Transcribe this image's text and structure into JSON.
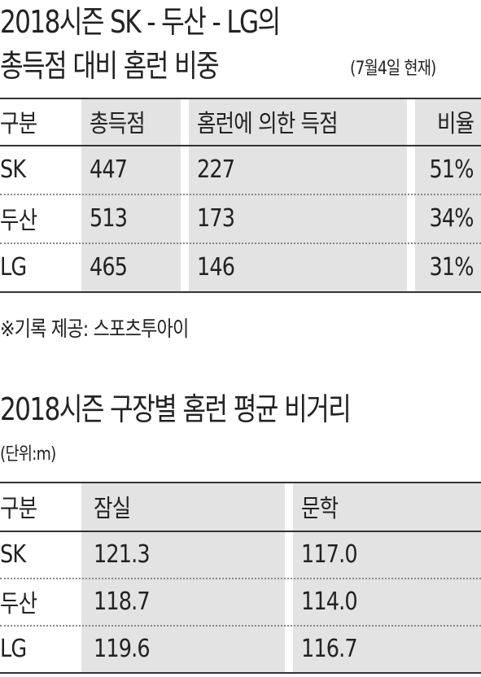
{
  "title1": {
    "line1": "2018시즌 SK - 두산 - LG의",
    "line2": "총득점 대비 홈런 비중",
    "note": "(7월4일 현재)"
  },
  "table1": {
    "header": [
      "구분",
      "총득점",
      "홈런에 의한 득점",
      "비율"
    ],
    "rows": [
      [
        "SK",
        "447",
        "227",
        "51%"
      ],
      [
        "두산",
        "513",
        "173",
        "34%"
      ],
      [
        "LG",
        "465",
        "146",
        "31%"
      ]
    ]
  },
  "source": "※기록 제공: 스포츠투아이",
  "title2": {
    "line1": "2018시즌 구장별 홈런 평균 비거리",
    "unit": "(단위:m)"
  },
  "table2": {
    "header": [
      "구분",
      "잠실",
      "문학"
    ],
    "rows": [
      [
        "SK",
        "121.3",
        "117.0"
      ],
      [
        "두산",
        "118.7",
        "114.0"
      ],
      [
        "LG",
        "119.6",
        "116.7"
      ]
    ]
  }
}
